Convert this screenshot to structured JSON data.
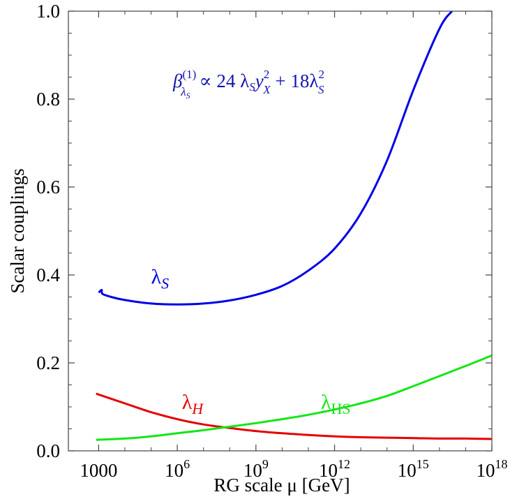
{
  "chart_data": {
    "type": "line",
    "title": "",
    "xlabel": "RG scale μ  [GeV]",
    "ylabel": "Scalar couplings",
    "x_scale": "log10",
    "xlim": [
      70,
      1e+18
    ],
    "ylim": [
      0,
      1
    ],
    "grid": false,
    "x_ticks": [
      {
        "value": 1000,
        "base": "1000",
        "exp": ""
      },
      {
        "value": 1000000.0,
        "base": "10",
        "exp": "6"
      },
      {
        "value": 1000000000.0,
        "base": "10",
        "exp": "9"
      },
      {
        "value": 1000000000000.0,
        "base": "10",
        "exp": "12"
      },
      {
        "value": 1000000000000000.0,
        "base": "10",
        "exp": "15"
      },
      {
        "value": 1e+18,
        "base": "10",
        "exp": "18"
      }
    ],
    "y_ticks": [
      {
        "value": 0.0,
        "label": "0.0"
      },
      {
        "value": 0.2,
        "label": "0.2"
      },
      {
        "value": 0.4,
        "label": "0.4"
      },
      {
        "value": 0.6,
        "label": "0.6"
      },
      {
        "value": 0.8,
        "label": "0.8"
      },
      {
        "value": 1.0,
        "label": "1.0"
      }
    ],
    "annotations": {
      "formula": {
        "beta": "β",
        "beta_sup": "(1)",
        "beta_sub": "λ",
        "beta_sub_sub": "S",
        "rel": " ∝ 24 λ",
        "s1": "S",
        "y": "y",
        "y_sup": "2",
        "y_sub": "X",
        "plus": " + 18λ",
        "l_sup": "2",
        "l_sub": "S",
        "color": "#1414b4"
      }
    },
    "series": [
      {
        "name": "λS",
        "label_main": "λ",
        "label_sub": "S",
        "label_at": {
          "x": 100000.0,
          "y": 0.38
        },
        "color": "#0000e6",
        "points": [
          [
            1000,
            0.36
          ],
          [
            1300,
            0.366
          ],
          [
            1400,
            0.357
          ],
          [
            3000,
            0.35
          ],
          [
            10000,
            0.343
          ],
          [
            100000,
            0.335
          ],
          [
            1000000.0,
            0.333
          ],
          [
            10000000.0,
            0.335
          ],
          [
            100000000.0,
            0.342
          ],
          [
            1000000000.0,
            0.355
          ],
          [
            10000000000.0,
            0.375
          ],
          [
            100000000000.0,
            0.41
          ],
          [
            1000000000000.0,
            0.46
          ],
          [
            10000000000000.0,
            0.54
          ],
          [
            100000000000000.0,
            0.66
          ],
          [
            1000000000000000.0,
            0.82
          ],
          [
            1e+16,
            0.96
          ],
          [
            3e+16,
            1.0
          ]
        ]
      },
      {
        "name": "λH",
        "label_main": "λ",
        "label_sub": "H",
        "label_at": {
          "x": 1500000.0,
          "y": 0.095
        },
        "color": "#e60000",
        "points": [
          [
            800,
            0.13
          ],
          [
            10000.0,
            0.108
          ],
          [
            100000.0,
            0.088
          ],
          [
            1000000.0,
            0.072
          ],
          [
            10000000.0,
            0.06
          ],
          [
            100000000.0,
            0.052
          ],
          [
            1000000000.0,
            0.045
          ],
          [
            10000000000.0,
            0.04
          ],
          [
            100000000000.0,
            0.036
          ],
          [
            1000000000000.0,
            0.033
          ],
          [
            10000000000000.0,
            0.031
          ],
          [
            100000000000000.0,
            0.03
          ],
          [
            1000000000000000.0,
            0.029
          ],
          [
            1e+16,
            0.028
          ],
          [
            1e+17,
            0.028
          ],
          [
            1e+18,
            0.027
          ]
        ]
      },
      {
        "name": "λHS",
        "label_main": "λ",
        "label_sub": "HS",
        "label_at": {
          "x": 300000000000.0,
          "y": 0.095
        },
        "color": "#14e614",
        "points": [
          [
            800,
            0.025
          ],
          [
            10000.0,
            0.028
          ],
          [
            100000.0,
            0.033
          ],
          [
            1000000.0,
            0.04
          ],
          [
            10000000.0,
            0.047
          ],
          [
            100000000.0,
            0.055
          ],
          [
            1000000000.0,
            0.063
          ],
          [
            10000000000.0,
            0.072
          ],
          [
            100000000000.0,
            0.082
          ],
          [
            1000000000000.0,
            0.094
          ],
          [
            10000000000000.0,
            0.108
          ],
          [
            100000000000000.0,
            0.125
          ],
          [
            1000000000000000.0,
            0.147
          ],
          [
            1e+16,
            0.17
          ],
          [
            1e+17,
            0.193
          ],
          [
            1e+18,
            0.217
          ]
        ]
      }
    ]
  }
}
